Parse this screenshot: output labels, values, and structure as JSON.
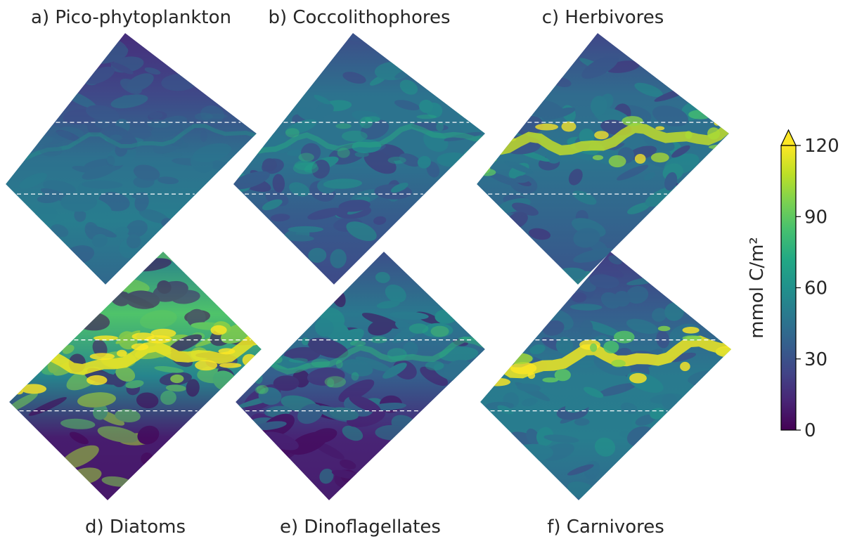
{
  "chart_data": {
    "type": "heatmap",
    "panels": [
      {
        "id": "a",
        "title": "a) Pico-phytoplankton",
        "title_position": "top",
        "front_strength": 0.15,
        "south_level": 0.42,
        "north_level": 0.22,
        "noise": 0.12
      },
      {
        "id": "b",
        "title": "b) Coccolithophores",
        "title_position": "top",
        "front_strength": 0.3,
        "south_level": 0.28,
        "north_level": 0.38,
        "noise": 0.16
      },
      {
        "id": "c",
        "title": "c) Herbivores",
        "title_position": "top",
        "front_strength": 0.85,
        "south_level": 0.32,
        "north_level": 0.35,
        "noise": 0.22
      },
      {
        "id": "d",
        "title": "d) Diatoms",
        "title_position": "bottom",
        "front_strength": 0.95,
        "south_level": 0.08,
        "north_level": 0.72,
        "noise": 0.18
      },
      {
        "id": "e",
        "title": "e) Dinoflagellates",
        "title_position": "bottom",
        "front_strength": 0.35,
        "south_level": 0.1,
        "north_level": 0.4,
        "noise": 0.15
      },
      {
        "id": "f",
        "title": "f) Carnivores",
        "title_position": "bottom",
        "front_strength": 0.95,
        "south_level": 0.42,
        "north_level": 0.3,
        "noise": 0.24
      }
    ],
    "colorbar": {
      "label": "mmol C/m²",
      "ticks": [
        0,
        30,
        60,
        90,
        120
      ],
      "range": [
        0,
        120
      ],
      "extend": "max",
      "colormap": "viridis"
    },
    "reference_lines": {
      "count_per_panel": 2,
      "style": "dashed",
      "color": "#ffffff"
    }
  }
}
